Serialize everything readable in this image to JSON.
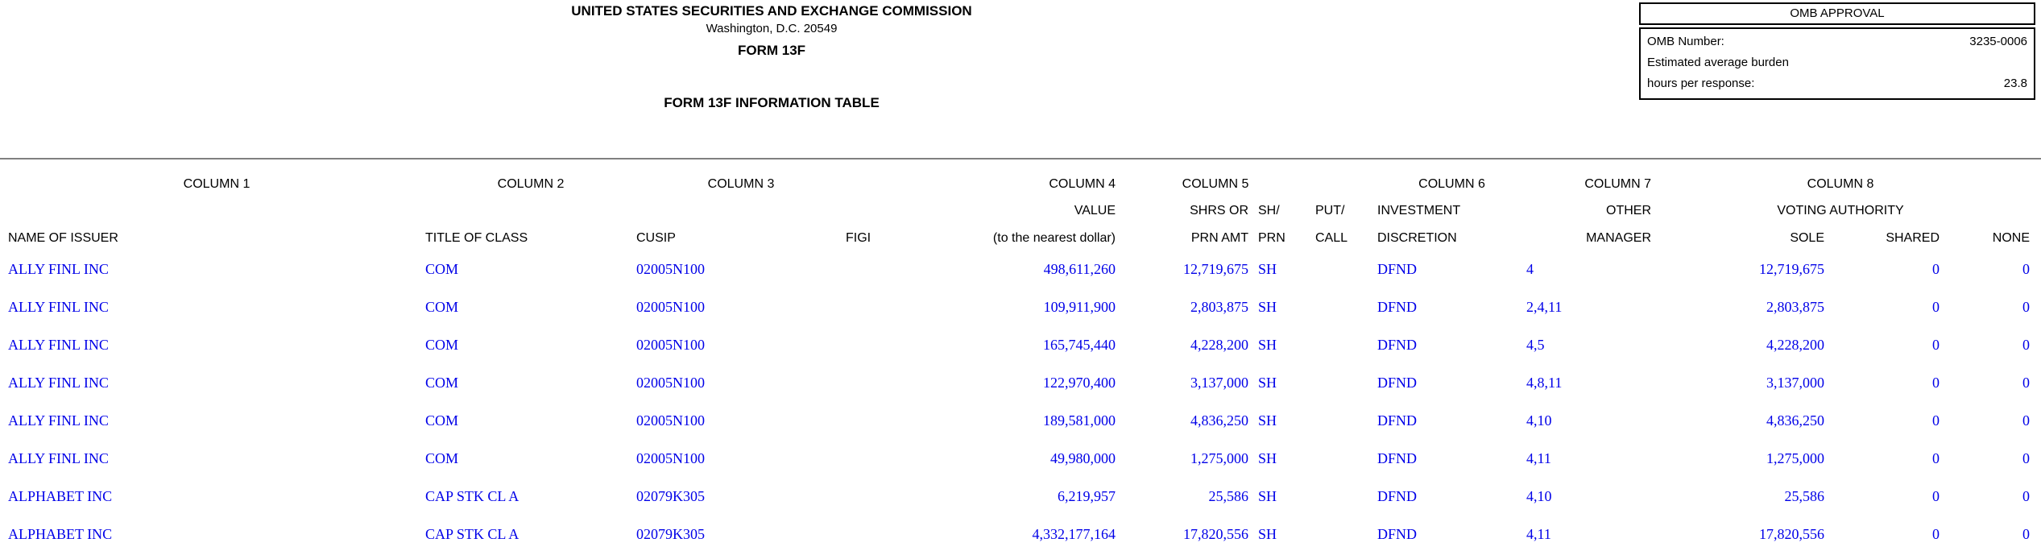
{
  "masthead": {
    "agency": "UNITED STATES SECURITIES AND EXCHANGE COMMISSION",
    "address": "Washington, D.C. 20549",
    "form_name": "FORM 13F",
    "table_title": "FORM 13F INFORMATION TABLE"
  },
  "omb": {
    "title": "OMB APPROVAL",
    "number_label": "OMB Number:",
    "number_value": "3235-0006",
    "burden_line1": "Estimated average burden",
    "burden_label": "hours per response:",
    "burden_value": "23.8"
  },
  "colors": {
    "data_text": "#0000E8",
    "header_text": "#000000",
    "divider": "#808080",
    "box_border": "#000000",
    "background": "#FFFFFF"
  },
  "table": {
    "column_headers": [
      "COLUMN 1",
      "COLUMN 2",
      "COLUMN 3",
      "COLUMN 4",
      "COLUMN 5",
      "COLUMN 6",
      "COLUMN 7",
      "COLUMN 8"
    ],
    "sub1": {
      "value": "VALUE",
      "shrs_or": "SHRS OR",
      "sh": "SH/",
      "put": "PUT/",
      "investment": "INVESTMENT",
      "other": "OTHER",
      "voting_authority": "VOTING AUTHORITY"
    },
    "sub2": {
      "name_of_issuer": "NAME OF ISSUER",
      "title_of_class": "TITLE OF CLASS",
      "cusip": "CUSIP",
      "figi": "FIGI",
      "nearest_dollar": "(to the nearest dollar)",
      "prn_amt": "PRN AMT",
      "prn": "PRN",
      "call": "CALL",
      "discretion": "DISCRETION",
      "manager": "MANAGER",
      "sole": "SOLE",
      "shared": "SHARED",
      "none": "NONE"
    },
    "rows": [
      {
        "issuer": "ALLY FINL INC",
        "class": "COM",
        "cusip": "02005N100",
        "figi": "",
        "value": "498,611,260",
        "shrs": "12,719,675",
        "sh_prn": "SH",
        "put_call": "",
        "discretion": "DFND",
        "other_manager": "4",
        "sole": "12,719,675",
        "shared": "0",
        "none": "0"
      },
      {
        "issuer": "ALLY FINL INC",
        "class": "COM",
        "cusip": "02005N100",
        "figi": "",
        "value": "109,911,900",
        "shrs": "2,803,875",
        "sh_prn": "SH",
        "put_call": "",
        "discretion": "DFND",
        "other_manager": "2,4,11",
        "sole": "2,803,875",
        "shared": "0",
        "none": "0"
      },
      {
        "issuer": "ALLY FINL INC",
        "class": "COM",
        "cusip": "02005N100",
        "figi": "",
        "value": "165,745,440",
        "shrs": "4,228,200",
        "sh_prn": "SH",
        "put_call": "",
        "discretion": "DFND",
        "other_manager": "4,5",
        "sole": "4,228,200",
        "shared": "0",
        "none": "0"
      },
      {
        "issuer": "ALLY FINL INC",
        "class": "COM",
        "cusip": "02005N100",
        "figi": "",
        "value": "122,970,400",
        "shrs": "3,137,000",
        "sh_prn": "SH",
        "put_call": "",
        "discretion": "DFND",
        "other_manager": "4,8,11",
        "sole": "3,137,000",
        "shared": "0",
        "none": "0"
      },
      {
        "issuer": "ALLY FINL INC",
        "class": "COM",
        "cusip": "02005N100",
        "figi": "",
        "value": "189,581,000",
        "shrs": "4,836,250",
        "sh_prn": "SH",
        "put_call": "",
        "discretion": "DFND",
        "other_manager": "4,10",
        "sole": "4,836,250",
        "shared": "0",
        "none": "0"
      },
      {
        "issuer": "ALLY FINL INC",
        "class": "COM",
        "cusip": "02005N100",
        "figi": "",
        "value": "49,980,000",
        "shrs": "1,275,000",
        "sh_prn": "SH",
        "put_call": "",
        "discretion": "DFND",
        "other_manager": "4,11",
        "sole": "1,275,000",
        "shared": "0",
        "none": "0"
      },
      {
        "issuer": "ALPHABET INC",
        "class": "CAP STK CL A",
        "cusip": "02079K305",
        "figi": "",
        "value": "6,219,957",
        "shrs": "25,586",
        "sh_prn": "SH",
        "put_call": "",
        "discretion": "DFND",
        "other_manager": "4,10",
        "sole": "25,586",
        "shared": "0",
        "none": "0"
      },
      {
        "issuer": "ALPHABET INC",
        "class": "CAP STK CL A",
        "cusip": "02079K305",
        "figi": "",
        "value": "4,332,177,164",
        "shrs": "17,820,556",
        "sh_prn": "SH",
        "put_call": "",
        "discretion": "DFND",
        "other_manager": "4,11",
        "sole": "17,820,556",
        "shared": "0",
        "none": "0"
      }
    ]
  }
}
